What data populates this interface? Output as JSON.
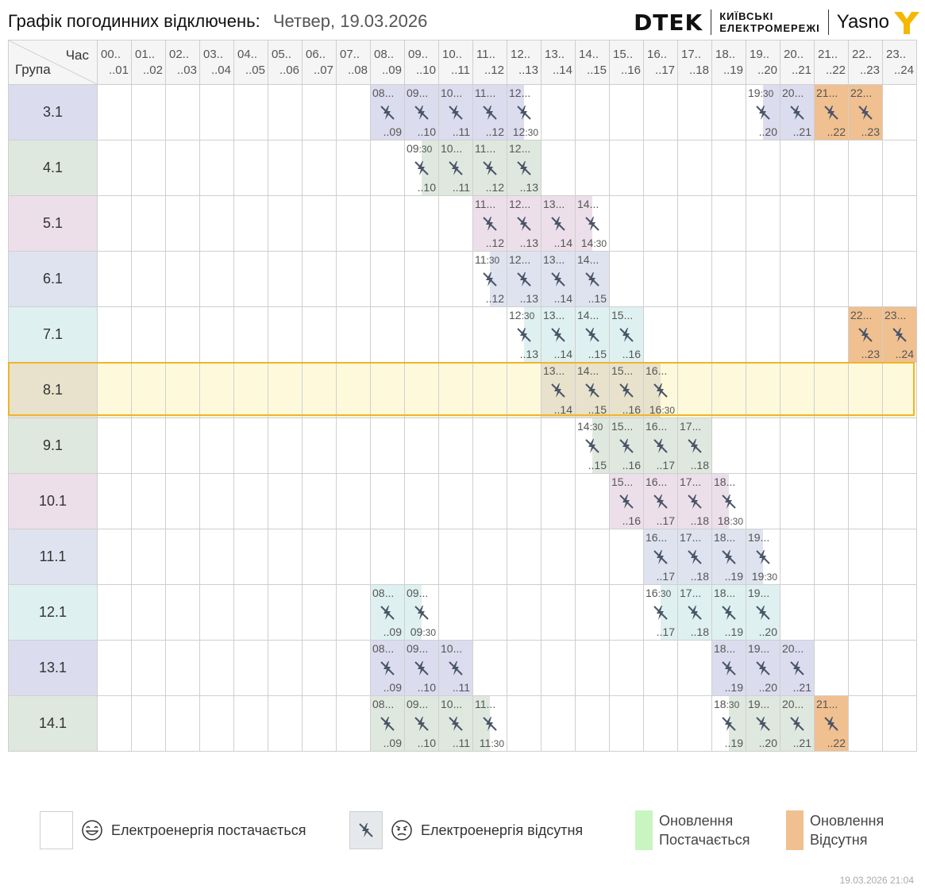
{
  "header": {
    "title": "Графік погодинних відключень:",
    "date": "Четвер, 19.03.2026",
    "brand": "DTEK",
    "brand_sub_1": "КИЇВСЬКІ",
    "brand_sub_2": "ЕЛЕКТРОМЕРЕЖІ",
    "partner": "Yasno"
  },
  "table": {
    "corner_hour": "Час",
    "corner_group": "Група",
    "hours": [
      {
        "a": "00..",
        "b": "..01"
      },
      {
        "a": "01..",
        "b": "..02"
      },
      {
        "a": "02..",
        "b": "..03"
      },
      {
        "a": "03..",
        "b": "..04"
      },
      {
        "a": "04..",
        "b": "..05"
      },
      {
        "a": "05..",
        "b": "..06"
      },
      {
        "a": "06..",
        "b": "..07"
      },
      {
        "a": "07..",
        "b": "..08"
      },
      {
        "a": "08..",
        "b": "..09"
      },
      {
        "a": "09..",
        "b": "..10"
      },
      {
        "a": "10..",
        "b": "..11"
      },
      {
        "a": "11..",
        "b": "..12"
      },
      {
        "a": "12..",
        "b": "..13"
      },
      {
        "a": "13..",
        "b": "..14"
      },
      {
        "a": "14..",
        "b": "..15"
      },
      {
        "a": "15..",
        "b": "..16"
      },
      {
        "a": "16..",
        "b": "..17"
      },
      {
        "a": "17..",
        "b": "..18"
      },
      {
        "a": "18..",
        "b": "..19"
      },
      {
        "a": "19..",
        "b": "..20"
      },
      {
        "a": "20..",
        "b": "..21"
      },
      {
        "a": "21..",
        "b": "..22"
      },
      {
        "a": "22..",
        "b": "..23"
      },
      {
        "a": "23..",
        "b": "..24"
      }
    ],
    "selected_group": "8.1",
    "groups": [
      {
        "name": "3.1",
        "color": "#dcdcef",
        "cells": [
          {
            "h": 8,
            "tl": "08...",
            "br": "..09"
          },
          {
            "h": 9,
            "tl": "09...",
            "br": "..10"
          },
          {
            "h": 10,
            "tl": "10...",
            "br": "..11"
          },
          {
            "h": 11,
            "tl": "11...",
            "br": "..12"
          },
          {
            "h": 12,
            "tl": "12...",
            "br": "12:30",
            "part": "left"
          },
          {
            "h": 19,
            "tl": "19:30",
            "br": "..20",
            "part": "right"
          },
          {
            "h": 20,
            "tl": "20...",
            "br": "..21"
          },
          {
            "h": 21,
            "tl": "21...",
            "br": "..22",
            "kind": "upd-off"
          },
          {
            "h": 22,
            "tl": "22...",
            "br": "..23",
            "kind": "upd-off"
          }
        ]
      },
      {
        "name": "4.1",
        "color": "#dfe8df",
        "cells": [
          {
            "h": 9,
            "tl": "09:30",
            "br": "..10",
            "part": "right"
          },
          {
            "h": 10,
            "tl": "10...",
            "br": "..11"
          },
          {
            "h": 11,
            "tl": "11...",
            "br": "..12"
          },
          {
            "h": 12,
            "tl": "12...",
            "br": "..13"
          }
        ]
      },
      {
        "name": "5.1",
        "color": "#ecdfea",
        "cells": [
          {
            "h": 11,
            "tl": "11...",
            "br": "..12"
          },
          {
            "h": 12,
            "tl": "12...",
            "br": "..13"
          },
          {
            "h": 13,
            "tl": "13...",
            "br": "..14"
          },
          {
            "h": 14,
            "tl": "14...",
            "br": "14:30",
            "part": "left"
          }
        ]
      },
      {
        "name": "6.1",
        "color": "#dee3ef",
        "cells": [
          {
            "h": 11,
            "tl": "11:30",
            "br": "..12",
            "part": "right"
          },
          {
            "h": 12,
            "tl": "12...",
            "br": "..13"
          },
          {
            "h": 13,
            "tl": "13...",
            "br": "..14"
          },
          {
            "h": 14,
            "tl": "14...",
            "br": "..15"
          }
        ]
      },
      {
        "name": "7.1",
        "color": "#dff0f0",
        "cells": [
          {
            "h": 12,
            "tl": "12:30",
            "br": "..13",
            "part": "right"
          },
          {
            "h": 13,
            "tl": "13...",
            "br": "..14"
          },
          {
            "h": 14,
            "tl": "14...",
            "br": "..15"
          },
          {
            "h": 15,
            "tl": "15...",
            "br": "..16"
          },
          {
            "h": 22,
            "tl": "22...",
            "br": "..23",
            "kind": "upd-off"
          },
          {
            "h": 23,
            "tl": "23...",
            "br": "..24",
            "kind": "upd-off"
          }
        ]
      },
      {
        "name": "8.1",
        "color": "#e8e2cc",
        "cells": [
          {
            "h": 13,
            "tl": "13...",
            "br": "..14"
          },
          {
            "h": 14,
            "tl": "14...",
            "br": "..15"
          },
          {
            "h": 15,
            "tl": "15...",
            "br": "..16"
          },
          {
            "h": 16,
            "tl": "16...",
            "br": "16:30",
            "part": "left"
          }
        ]
      },
      {
        "name": "9.1",
        "color": "#dfe8df",
        "cells": [
          {
            "h": 14,
            "tl": "14:30",
            "br": "..15",
            "part": "right"
          },
          {
            "h": 15,
            "tl": "15...",
            "br": "..16"
          },
          {
            "h": 16,
            "tl": "16...",
            "br": "..17"
          },
          {
            "h": 17,
            "tl": "17...",
            "br": "..18"
          }
        ]
      },
      {
        "name": "10.1",
        "color": "#ecdfea",
        "cells": [
          {
            "h": 15,
            "tl": "15...",
            "br": "..16"
          },
          {
            "h": 16,
            "tl": "16...",
            "br": "..17"
          },
          {
            "h": 17,
            "tl": "17...",
            "br": "..18"
          },
          {
            "h": 18,
            "tl": "18...",
            "br": "18:30",
            "part": "left"
          }
        ]
      },
      {
        "name": "11.1",
        "color": "#dee3ef",
        "cells": [
          {
            "h": 16,
            "tl": "16...",
            "br": "..17"
          },
          {
            "h": 17,
            "tl": "17...",
            "br": "..18"
          },
          {
            "h": 18,
            "tl": "18...",
            "br": "..19"
          },
          {
            "h": 19,
            "tl": "19...",
            "br": "19:30",
            "part": "left"
          }
        ]
      },
      {
        "name": "12.1",
        "color": "#dff0f0",
        "cells": [
          {
            "h": 8,
            "tl": "08...",
            "br": "..09"
          },
          {
            "h": 9,
            "tl": "09...",
            "br": "09:30",
            "part": "left"
          },
          {
            "h": 16,
            "tl": "16:30",
            "br": "..17",
            "part": "right"
          },
          {
            "h": 17,
            "tl": "17...",
            "br": "..18"
          },
          {
            "h": 18,
            "tl": "18...",
            "br": "..19"
          },
          {
            "h": 19,
            "tl": "19...",
            "br": "..20"
          }
        ]
      },
      {
        "name": "13.1",
        "color": "#dcdcef",
        "cells": [
          {
            "h": 8,
            "tl": "08...",
            "br": "..09"
          },
          {
            "h": 9,
            "tl": "09...",
            "br": "..10"
          },
          {
            "h": 10,
            "tl": "10...",
            "br": "..11"
          },
          {
            "h": 18,
            "tl": "18...",
            "br": "..19"
          },
          {
            "h": 19,
            "tl": "19...",
            "br": "..20"
          },
          {
            "h": 20,
            "tl": "20...",
            "br": "..21"
          }
        ]
      },
      {
        "name": "14.1",
        "color": "#dfe8df",
        "cells": [
          {
            "h": 8,
            "tl": "08...",
            "br": "..09"
          },
          {
            "h": 9,
            "tl": "09...",
            "br": "..10"
          },
          {
            "h": 10,
            "tl": "10...",
            "br": "..11"
          },
          {
            "h": 11,
            "tl": "11...",
            "br": "11:30",
            "part": "left"
          },
          {
            "h": 18,
            "tl": "18:30",
            "br": "..19",
            "part": "right"
          },
          {
            "h": 19,
            "tl": "19...",
            "br": "..20"
          },
          {
            "h": 20,
            "tl": "20...",
            "br": "..21"
          },
          {
            "h": 21,
            "tl": "21...",
            "br": "..22",
            "kind": "upd-off"
          }
        ]
      }
    ]
  },
  "colors": {
    "update_off": "#f0c090",
    "update_on": "#c8f5c0",
    "legend_off": "#e6e9ec",
    "selected_border": "#f0b429",
    "selected_bg": "#fff9dc"
  },
  "legend": {
    "on_label": "Електроенергія постачається",
    "off_label": "Електроенергія відсутня",
    "upd_on_1": "Оновлення",
    "upd_on_2": "Постачається",
    "upd_off_1": "Оновлення",
    "upd_off_2": "Відсутня"
  },
  "footer": {
    "stamp": "19.03.2026   21:04"
  }
}
